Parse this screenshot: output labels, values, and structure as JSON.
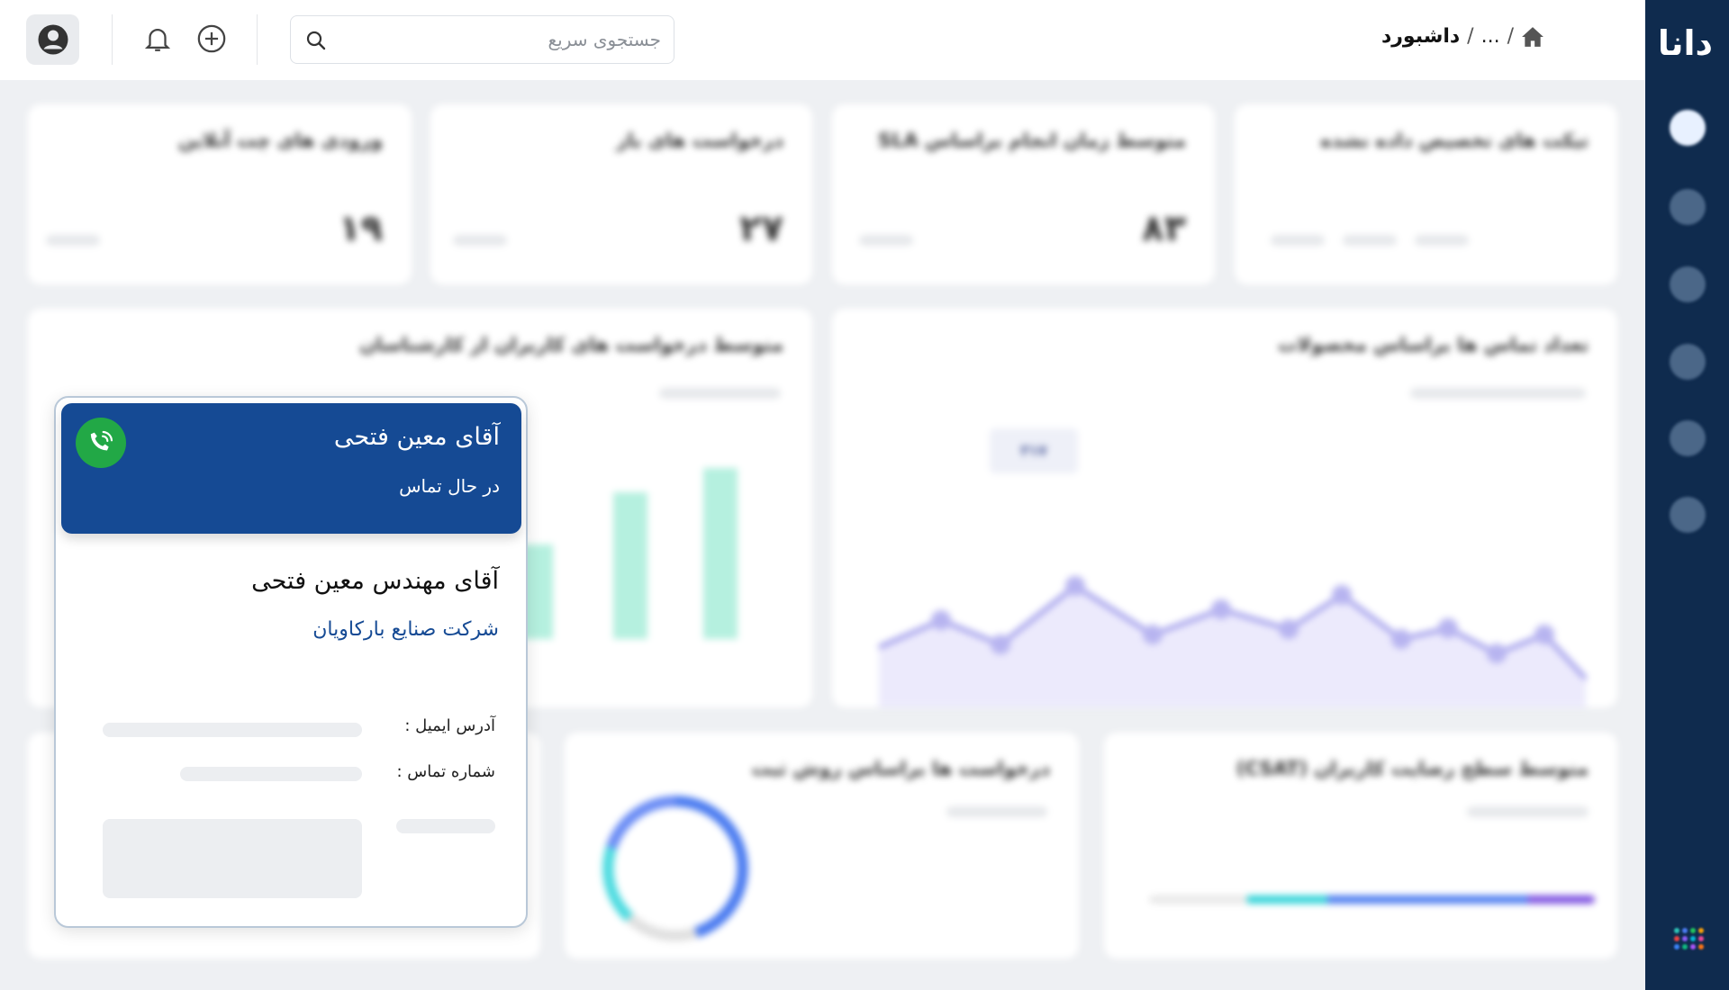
{
  "sidebar": {
    "logo": "دانا",
    "grid_colors": [
      "#2ec4b6",
      "#4a7bf0",
      "#22c55e",
      "#f59e0b",
      "#ef4444",
      "#8b5cf6",
      "#06b6d4",
      "#ec4899",
      "#3b82f6",
      "#10b981",
      "#a855f7",
      "#f97316"
    ]
  },
  "header": {
    "breadcrumb": {
      "home_icon": "home-icon",
      "ellipsis": "...",
      "separator": "/",
      "current": "داشبورد"
    },
    "search": {
      "placeholder": "جستجوی سریع",
      "value": ""
    }
  },
  "stats": [
    {
      "title": "تیکت های تخصیص داده نشده",
      "value": ""
    },
    {
      "title": "متوسط زمان انجام براساس SLA",
      "value": "۸۳"
    },
    {
      "title": "درخواست های باز",
      "value": "۲۷"
    },
    {
      "title": "ورودی های چت آنلاین",
      "value": "۱۹"
    }
  ],
  "charts": {
    "calls_by_product": {
      "title": "تعداد تماس ها براساس محصولات",
      "tooltip": "۳۱۷"
    },
    "avg_requests": {
      "title": "متوسط درخواست های کاربران از کارشناسان"
    },
    "csat": {
      "title": "متوسط سطح رضایت کاربران (CSAT)"
    },
    "by_channel": {
      "title": "درخواست ها براساس روش ثبت"
    }
  },
  "call_popup": {
    "caller_name": "آقای معین فتحی",
    "status": "در حال تماس",
    "full_name": "آقای مهندس معین فتحی",
    "company": "شرکت صنایع بارکاویان",
    "email_label": "آدرس ایمیل :",
    "phone_label": "شماره تماس :",
    "call_color": "#22a846",
    "header_color": "#154a94"
  }
}
